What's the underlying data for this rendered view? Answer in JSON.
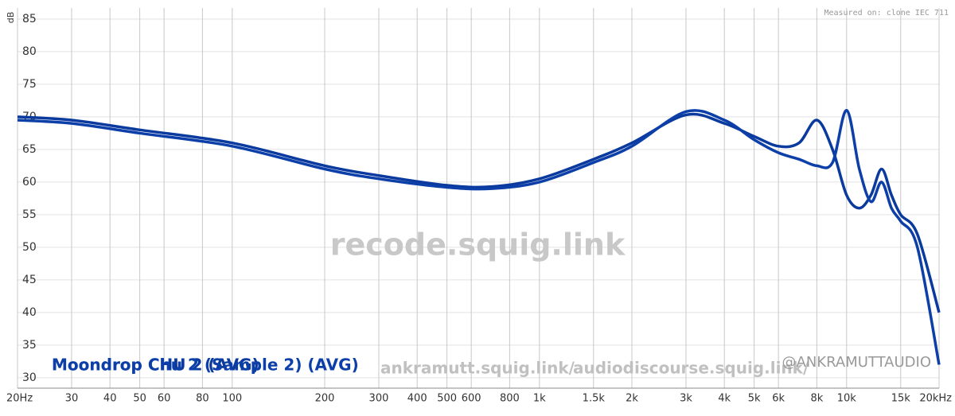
{
  "chart_data": {
    "type": "line",
    "y_label": "dB",
    "note": "Measured on: clone IEC 711",
    "watermarks": [
      "recode.squig.link",
      "ankramutt.squig.link/",
      "audiodiscourse.squig.link/",
      "@ANKRAMUTTAUDIO"
    ],
    "log_x": true,
    "grid": true,
    "xlim": [
      20,
      20000
    ],
    "ylim": [
      28.4,
      86.7
    ],
    "xticks": [
      {
        "value": 20,
        "label": "20Hz"
      },
      30,
      40,
      50,
      60,
      80,
      100,
      200,
      300,
      400,
      500,
      600,
      800,
      {
        "value": 1000,
        "label": "1k"
      },
      {
        "value": 1500,
        "label": "1.5k"
      },
      {
        "value": 2000,
        "label": "2k"
      },
      {
        "value": 3000,
        "label": "3k"
      },
      {
        "value": 4000,
        "label": "4k"
      },
      {
        "value": 5000,
        "label": "5k"
      },
      {
        "value": 6000,
        "label": "6k"
      },
      {
        "value": 8000,
        "label": "8k"
      },
      {
        "value": 10000,
        "label": "10k"
      },
      {
        "value": 15000,
        "label": "15k"
      },
      {
        "value": 20000,
        "label": "20kHz"
      }
    ],
    "yticks": [
      30,
      35,
      40,
      45,
      50,
      55,
      60,
      65,
      70,
      75,
      80,
      85
    ],
    "x": [
      20,
      30,
      50,
      100,
      200,
      300,
      500,
      700,
      1000,
      1500,
      2000,
      3000,
      4000,
      5000,
      6000,
      7000,
      8000,
      9000,
      10000,
      11000,
      12000,
      13000,
      14000,
      15000,
      17000,
      20000
    ],
    "series": [
      {
        "name": "Moondrop CHU 2 (AVG)",
        "color": "#0a3a9e",
        "values": [
          70,
          69.5,
          68,
          66,
          62.5,
          61,
          59.5,
          59.3,
          60.5,
          63.5,
          66,
          70.3,
          69,
          67,
          65.5,
          66,
          69.5,
          65,
          58,
          56,
          58,
          62,
          58,
          55,
          52,
          40
        ]
      },
      {
        "name": "Moondrop Chu 2 (Sample 2) (AVG)",
        "color": "#0d3fa8",
        "values": [
          69.5,
          69,
          67.5,
          65.5,
          62,
          60.5,
          59.2,
          59,
          60,
          63,
          65.5,
          70.8,
          69.5,
          66.5,
          64.5,
          63.5,
          62.5,
          63,
          71,
          62,
          57,
          60,
          56,
          54,
          50,
          32
        ]
      }
    ]
  }
}
